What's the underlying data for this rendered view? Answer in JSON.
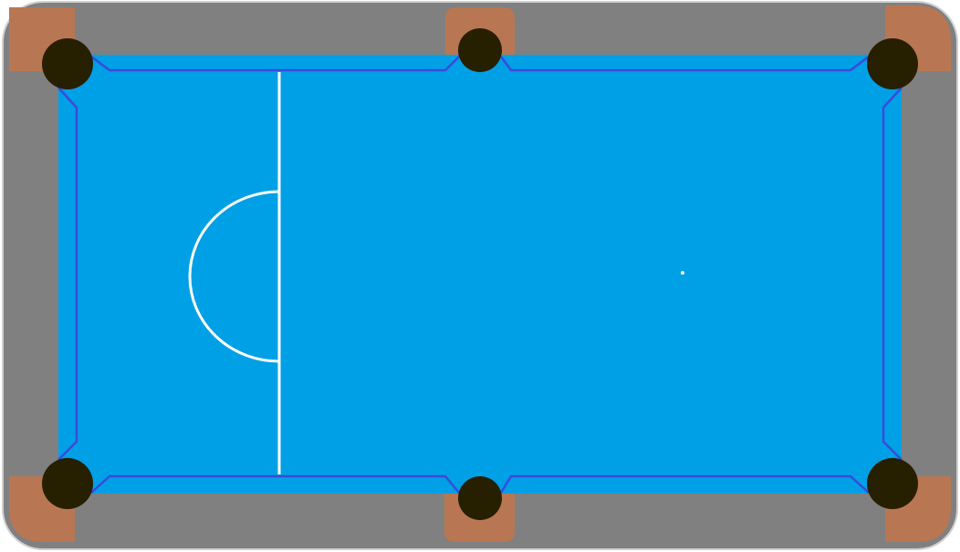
{
  "game": {
    "type": "pool-table",
    "colors": {
      "frame": "#808080",
      "frame_border": "#d0d0d0",
      "cloth": "#00a0e6",
      "cushion_line": "#3a4bd9",
      "pocket_plate": "#b87752",
      "pocket_hole": "#261f00",
      "markings": "#ffffff"
    },
    "pockets": [
      "top-left",
      "top-middle",
      "top-right",
      "bottom-left",
      "bottom-middle",
      "bottom-right"
    ],
    "markings": [
      "baulk-line",
      "d-semicircle",
      "spot"
    ]
  }
}
